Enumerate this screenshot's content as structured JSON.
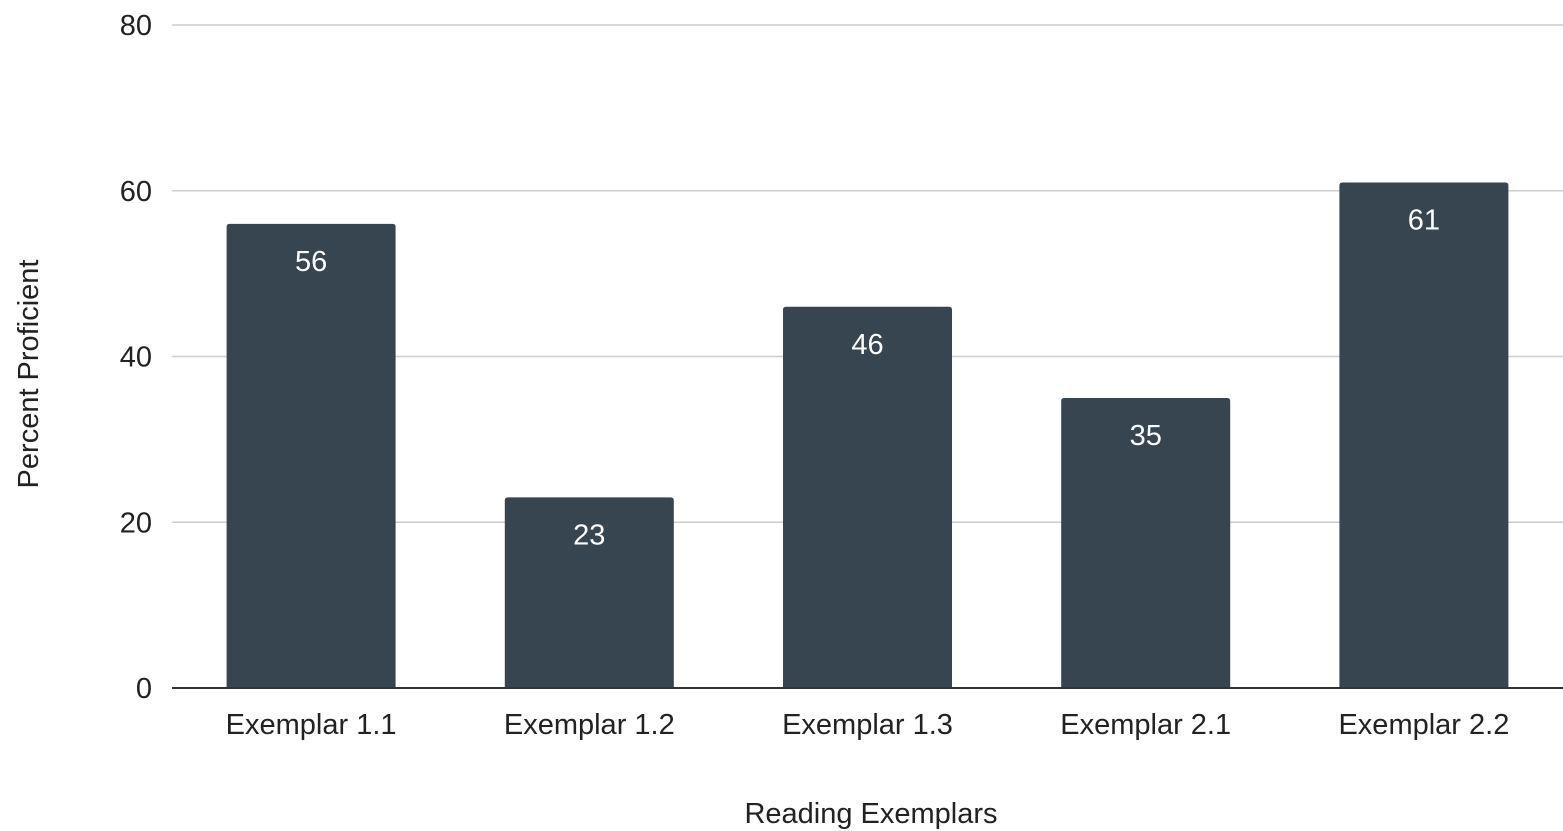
{
  "chart_data": {
    "type": "bar",
    "title": "",
    "xlabel": "Reading Exemplars",
    "ylabel": "Percent Proficient",
    "categories": [
      "Exemplar 1.1",
      "Exemplar 1.2",
      "Exemplar 1.3",
      "Exemplar 2.1",
      "Exemplar 2.2"
    ],
    "values": [
      56,
      23,
      46,
      35,
      61
    ],
    "data_labels": [
      "56",
      "23",
      "46",
      "35",
      "61"
    ],
    "ylim": [
      0,
      80
    ],
    "yticks": [
      0,
      20,
      40,
      60,
      80
    ],
    "ytick_labels": [
      "0",
      "20",
      "40",
      "60",
      "80"
    ],
    "grid": true,
    "legend": "none",
    "colors": {
      "bar": "#36454f",
      "data_label": "#ffffff",
      "grid": "#cccccc",
      "axis": "#333333",
      "text": "#222222"
    }
  }
}
